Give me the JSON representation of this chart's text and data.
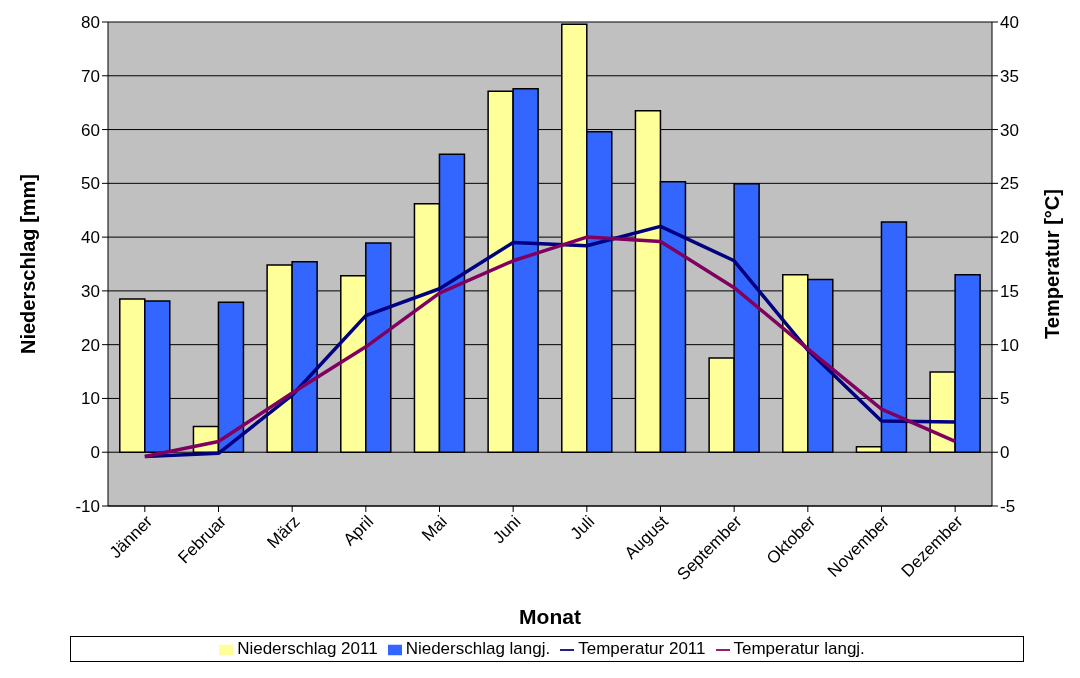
{
  "chart_data": {
    "type": "bar",
    "xlabel": "Monat",
    "ylabel": "Niederschlag [mm]",
    "y2label": "Temperatur [°C]",
    "categories": [
      "Jänner",
      "Februar",
      "März",
      "April",
      "Mai",
      "Juni",
      "Juli",
      "August",
      "September",
      "Oktober",
      "November",
      "Dezember"
    ],
    "series": [
      {
        "name": "Niederschlag 2011",
        "color": "#ffff99",
        "values": [
          28.5,
          4.8,
          34.8,
          32.8,
          46.2,
          67.1,
          79.6,
          63.5,
          17.5,
          33.0,
          1.0,
          14.9
        ]
      },
      {
        "name": "Niederschlag langj.",
        "color": "#3366ff",
        "values": [
          28.1,
          27.9,
          35.4,
          38.9,
          55.4,
          67.6,
          59.6,
          50.3,
          49.9,
          32.1,
          42.8,
          33.0
        ]
      },
      {
        "name": "Temperatur 2011",
        "type": "line",
        "axis": "y2",
        "color": "#000080",
        "values": [
          -0.4,
          -0.1,
          5.3,
          12.7,
          15.2,
          19.5,
          19.2,
          21.0,
          17.8,
          9.5,
          2.9,
          2.8
        ]
      },
      {
        "name": "Temperatur langj.",
        "type": "line",
        "axis": "y2",
        "color": "#800060",
        "values": [
          -0.4,
          1.0,
          5.5,
          9.8,
          14.8,
          17.8,
          20.0,
          19.6,
          15.3,
          9.6,
          4.0,
          1.0
        ]
      }
    ],
    "ylim": [
      -10,
      80
    ],
    "yticks": [
      -10,
      0,
      10,
      20,
      30,
      40,
      50,
      60,
      70,
      80
    ],
    "y2lim": [
      -5,
      40
    ],
    "y2ticks": [
      -5,
      0,
      5,
      10,
      15,
      20,
      25,
      30,
      35,
      40
    ],
    "grid": "y",
    "legend": "bottom",
    "marker": "none"
  }
}
